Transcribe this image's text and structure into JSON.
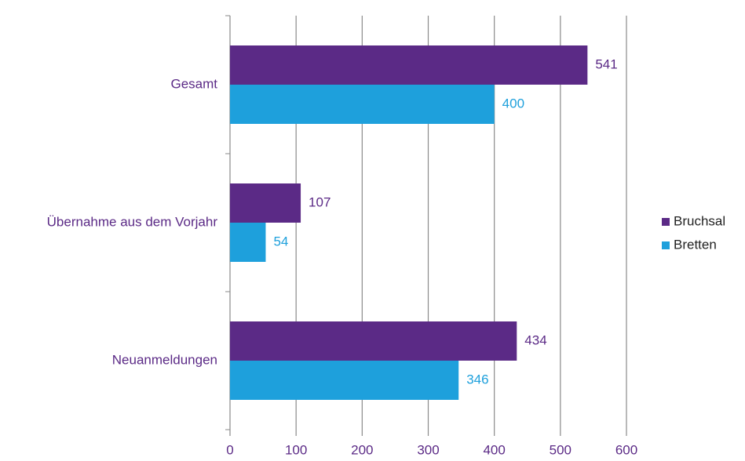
{
  "chart_data": {
    "type": "hbar",
    "categories": [
      "Gesamt",
      "Übernahme aus dem Vorjahr",
      "Neuanmeldungen"
    ],
    "series": [
      {
        "name": "Bruchsal",
        "color": "#5b2a86",
        "values": [
          541,
          107,
          434
        ]
      },
      {
        "name": "Bretten",
        "color": "#1ea0dc",
        "values": [
          400,
          54,
          346
        ]
      }
    ],
    "xlim": [
      0,
      600
    ],
    "xticks": [
      0,
      100,
      200,
      300,
      400,
      500,
      600
    ],
    "grid": true,
    "legend": "right"
  }
}
